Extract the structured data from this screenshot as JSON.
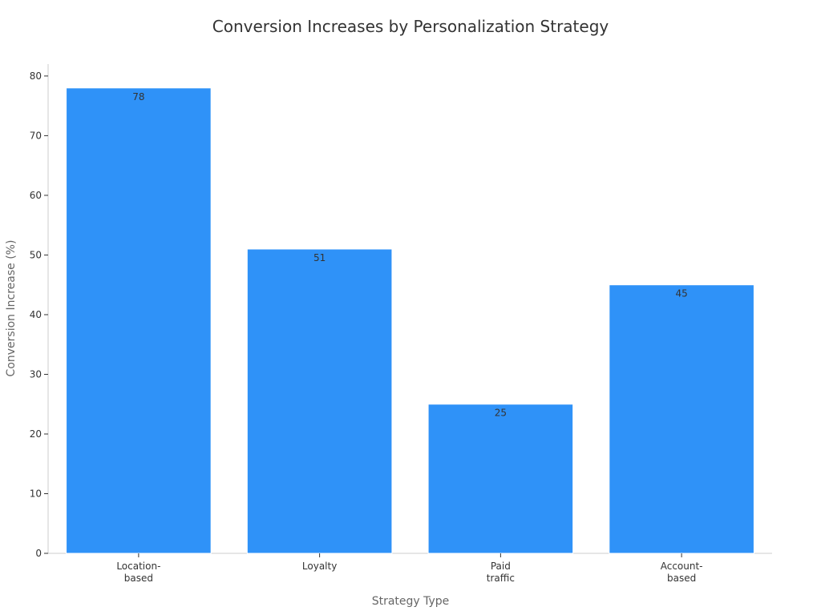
{
  "chart_data": {
    "type": "bar",
    "title": "Conversion Increases by Personalization Strategy",
    "xlabel": "Strategy Type",
    "ylabel": "Conversion Increase (%)",
    "categories": [
      [
        "Location-",
        "based"
      ],
      [
        "Loyalty"
      ],
      [
        "Paid",
        "traffic"
      ],
      [
        "Account-",
        "based"
      ]
    ],
    "values": [
      78,
      51,
      25,
      45
    ],
    "ylim": [
      0,
      82
    ],
    "yticks": [
      0,
      10,
      20,
      30,
      40,
      50,
      60,
      70,
      80
    ],
    "grid": false,
    "legend": "none",
    "bar_color": "#2f92f8"
  }
}
